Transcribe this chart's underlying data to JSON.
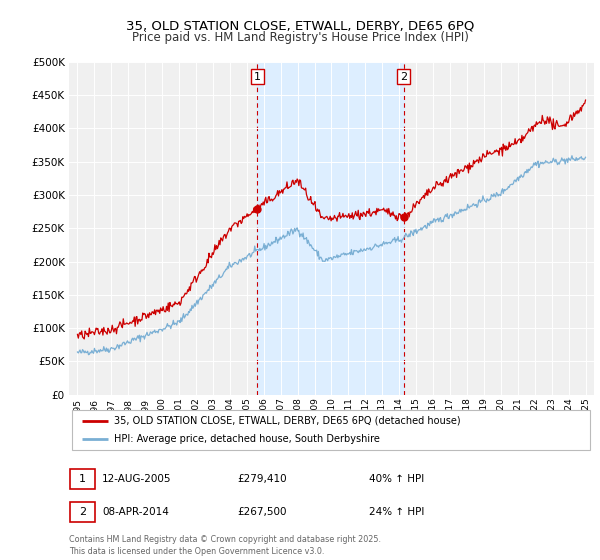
{
  "title": "35, OLD STATION CLOSE, ETWALL, DERBY, DE65 6PQ",
  "subtitle": "Price paid vs. HM Land Registry's House Price Index (HPI)",
  "legend_line1": "35, OLD STATION CLOSE, ETWALL, DERBY, DE65 6PQ (detached house)",
  "legend_line2": "HPI: Average price, detached house, South Derbyshire",
  "footnote": "Contains HM Land Registry data © Crown copyright and database right 2025.\nThis data is licensed under the Open Government Licence v3.0.",
  "event1_date": "12-AUG-2005",
  "event1_price": "£279,410",
  "event1_hpi": "40% ↑ HPI",
  "event2_date": "08-APR-2014",
  "event2_price": "£267,500",
  "event2_hpi": "24% ↑ HPI",
  "event1_x": 2005.617,
  "event2_x": 2014.267,
  "event1_y": 279410,
  "event2_y": 267500,
  "red_color": "#cc0000",
  "blue_color": "#7aafd4",
  "shade_color": "#ddeeff",
  "plot_bg": "#f0f0f0",
  "grid_color": "#ffffff",
  "ylim_max": 500000,
  "xlim_min": 1994.5,
  "xlim_max": 2025.5,
  "yticks": [
    0,
    50000,
    100000,
    150000,
    200000,
    250000,
    300000,
    350000,
    400000,
    450000,
    500000
  ]
}
